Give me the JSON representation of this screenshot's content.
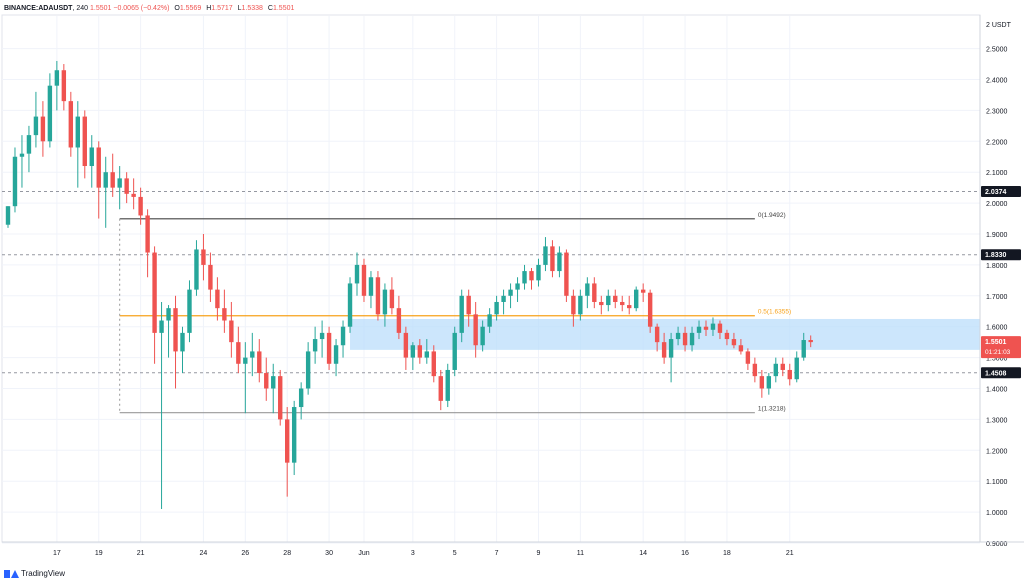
{
  "header": {
    "symbol": "BINANCE:ADAUSDT",
    "interval": "240",
    "last": "1.5501",
    "change": "−0.0065 (−0.42%)",
    "open_label": "O",
    "open": "1.5569",
    "high_label": "H",
    "high": "1.5717",
    "low_label": "L",
    "low": "1.5338",
    "close_label": "C",
    "close": "1.5501"
  },
  "footer": {
    "brand": "TradingView"
  },
  "colors": {
    "up": "#26a69a",
    "down": "#ef5350",
    "fib_half": "#f7a21b",
    "fib_line": "#444444",
    "zone": "#bbdefb",
    "grid": "#f0f3fa",
    "axis_text": "#131722",
    "label_bg": "#131722",
    "price_label_bg": "#ef5350"
  },
  "chart_data": {
    "type": "candlestick",
    "ylim": [
      0.9,
      2.6
    ],
    "y_unit": "USDT",
    "y_ticks": [
      "2.5000",
      "2.4000",
      "2.3000",
      "2.2000",
      "2.1000",
      "2.0000",
      "1.9000",
      "1.8000",
      "1.7000",
      "1.6000",
      "1.5000",
      "1.4000",
      "1.3000",
      "1.2000",
      "1.1000",
      "1.0000",
      "0.9000"
    ],
    "x_ticks": [
      {
        "label": "17",
        "t": 14
      },
      {
        "label": "19",
        "t": 26
      },
      {
        "label": "21",
        "t": 38
      },
      {
        "label": "24",
        "t": 56
      },
      {
        "label": "26",
        "t": 68
      },
      {
        "label": "28",
        "t": 80
      },
      {
        "label": "30",
        "t": 92
      },
      {
        "label": "Jun",
        "t": 102
      },
      {
        "label": "3",
        "t": 116
      },
      {
        "label": "5",
        "t": 128
      },
      {
        "label": "7",
        "t": 140
      },
      {
        "label": "9",
        "t": 152
      },
      {
        "label": "11",
        "t": 164
      },
      {
        "label": "14",
        "t": 182
      },
      {
        "label": "16",
        "t": 194
      },
      {
        "label": "18",
        "t": 206
      },
      {
        "label": "21",
        "t": 224
      }
    ],
    "price_labels": [
      {
        "text": "2.0374",
        "value": 2.0374,
        "style": "dark",
        "dashed_line": true
      },
      {
        "text": "1.8330",
        "value": 1.833,
        "style": "dark",
        "dashed_line": true
      },
      {
        "text": "1.5501",
        "sub": "01:21:03",
        "value": 1.5501,
        "style": "red",
        "dashed_line": false
      },
      {
        "text": "1.4508",
        "value": 1.4508,
        "style": "dark",
        "dashed_line": true
      }
    ],
    "fib_levels": [
      {
        "label": "0(1.9492)",
        "value": 1.9492,
        "color": "#444444",
        "t_start": 32,
        "t_end": 214
      },
      {
        "label": "0.5(1.6355)",
        "value": 1.6355,
        "color": "#f7a21b",
        "t_start": 32,
        "t_end": 214
      },
      {
        "label": "1(1.3218)",
        "value": 1.3218,
        "color": "#999999",
        "t_start": 32,
        "t_end": 214
      }
    ],
    "zone": {
      "t_start": 98,
      "t_end": 240,
      "from": 1.525,
      "to": 1.625
    },
    "candles": [
      [
        1.93,
        1.99,
        1.92,
        1.99
      ],
      [
        1.99,
        2.18,
        1.97,
        2.15
      ],
      [
        2.15,
        2.22,
        2.05,
        2.16
      ],
      [
        2.16,
        2.25,
        2.1,
        2.22
      ],
      [
        2.22,
        2.36,
        2.18,
        2.28
      ],
      [
        2.28,
        2.33,
        2.15,
        2.2
      ],
      [
        2.2,
        2.42,
        2.18,
        2.38
      ],
      [
        2.38,
        2.46,
        2.3,
        2.43
      ],
      [
        2.43,
        2.45,
        2.3,
        2.33
      ],
      [
        2.33,
        2.36,
        2.15,
        2.18
      ],
      [
        2.18,
        2.33,
        2.05,
        2.28
      ],
      [
        2.28,
        2.3,
        2.08,
        2.12
      ],
      [
        2.12,
        2.22,
        2.05,
        2.18
      ],
      [
        2.18,
        2.2,
        1.95,
        2.05
      ],
      [
        2.05,
        2.15,
        1.92,
        2.1
      ],
      [
        2.1,
        2.16,
        2.02,
        2.05
      ],
      [
        2.05,
        2.12,
        1.98,
        2.08
      ],
      [
        2.08,
        2.1,
        2.0,
        2.03
      ],
      [
        2.03,
        2.08,
        1.98,
        2.02
      ],
      [
        2.02,
        2.05,
        1.93,
        1.96
      ],
      [
        1.96,
        1.98,
        1.76,
        1.84
      ],
      [
        1.84,
        1.86,
        1.48,
        1.58
      ],
      [
        1.58,
        1.68,
        1.01,
        1.62
      ],
      [
        1.62,
        1.67,
        1.5,
        1.66
      ],
      [
        1.66,
        1.7,
        1.4,
        1.52
      ],
      [
        1.52,
        1.6,
        1.45,
        1.58
      ],
      [
        1.58,
        1.75,
        1.55,
        1.72
      ],
      [
        1.72,
        1.88,
        1.7,
        1.85
      ],
      [
        1.85,
        1.9,
        1.75,
        1.8
      ],
      [
        1.8,
        1.84,
        1.68,
        1.72
      ],
      [
        1.72,
        1.76,
        1.62,
        1.66
      ],
      [
        1.66,
        1.72,
        1.58,
        1.62
      ],
      [
        1.62,
        1.68,
        1.5,
        1.55
      ],
      [
        1.55,
        1.6,
        1.45,
        1.48
      ],
      [
        1.48,
        1.55,
        1.32,
        1.5
      ],
      [
        1.5,
        1.58,
        1.44,
        1.52
      ],
      [
        1.52,
        1.56,
        1.42,
        1.45
      ],
      [
        1.45,
        1.5,
        1.36,
        1.4
      ],
      [
        1.4,
        1.48,
        1.32,
        1.44
      ],
      [
        1.44,
        1.46,
        1.28,
        1.3
      ],
      [
        1.3,
        1.34,
        1.05,
        1.16
      ],
      [
        1.16,
        1.36,
        1.12,
        1.34
      ],
      [
        1.34,
        1.42,
        1.3,
        1.4
      ],
      [
        1.4,
        1.55,
        1.38,
        1.52
      ],
      [
        1.52,
        1.6,
        1.48,
        1.56
      ],
      [
        1.56,
        1.62,
        1.5,
        1.58
      ],
      [
        1.58,
        1.6,
        1.46,
        1.48
      ],
      [
        1.48,
        1.56,
        1.44,
        1.54
      ],
      [
        1.54,
        1.62,
        1.5,
        1.6
      ],
      [
        1.6,
        1.76,
        1.58,
        1.74
      ],
      [
        1.74,
        1.84,
        1.7,
        1.8
      ],
      [
        1.8,
        1.82,
        1.68,
        1.7
      ],
      [
        1.7,
        1.78,
        1.66,
        1.76
      ],
      [
        1.76,
        1.78,
        1.62,
        1.64
      ],
      [
        1.64,
        1.74,
        1.6,
        1.72
      ],
      [
        1.72,
        1.76,
        1.64,
        1.66
      ],
      [
        1.66,
        1.7,
        1.56,
        1.58
      ],
      [
        1.58,
        1.6,
        1.46,
        1.5
      ],
      [
        1.5,
        1.55,
        1.46,
        1.54
      ],
      [
        1.54,
        1.56,
        1.48,
        1.5
      ],
      [
        1.5,
        1.56,
        1.48,
        1.52
      ],
      [
        1.52,
        1.54,
        1.42,
        1.44
      ],
      [
        1.44,
        1.46,
        1.33,
        1.36
      ],
      [
        1.36,
        1.48,
        1.34,
        1.46
      ],
      [
        1.46,
        1.6,
        1.44,
        1.58
      ],
      [
        1.58,
        1.72,
        1.55,
        1.7
      ],
      [
        1.7,
        1.72,
        1.6,
        1.64
      ],
      [
        1.64,
        1.68,
        1.5,
        1.54
      ],
      [
        1.54,
        1.62,
        1.52,
        1.6
      ],
      [
        1.6,
        1.66,
        1.58,
        1.64
      ],
      [
        1.64,
        1.7,
        1.62,
        1.68
      ],
      [
        1.68,
        1.72,
        1.64,
        1.7
      ],
      [
        1.7,
        1.74,
        1.66,
        1.72
      ],
      [
        1.72,
        1.76,
        1.68,
        1.74
      ],
      [
        1.74,
        1.8,
        1.72,
        1.78
      ],
      [
        1.78,
        1.79,
        1.72,
        1.75
      ],
      [
        1.75,
        1.82,
        1.73,
        1.8
      ],
      [
        1.8,
        1.89,
        1.78,
        1.86
      ],
      [
        1.86,
        1.88,
        1.76,
        1.78
      ],
      [
        1.78,
        1.86,
        1.76,
        1.84
      ],
      [
        1.84,
        1.85,
        1.68,
        1.7
      ],
      [
        1.7,
        1.72,
        1.6,
        1.64
      ],
      [
        1.64,
        1.72,
        1.62,
        1.7
      ],
      [
        1.7,
        1.76,
        1.66,
        1.74
      ],
      [
        1.74,
        1.76,
        1.66,
        1.68
      ],
      [
        1.68,
        1.7,
        1.64,
        1.67
      ],
      [
        1.67,
        1.72,
        1.65,
        1.7
      ],
      [
        1.7,
        1.72,
        1.66,
        1.68
      ],
      [
        1.68,
        1.7,
        1.65,
        1.67
      ],
      [
        1.67,
        1.7,
        1.64,
        1.66
      ],
      [
        1.66,
        1.73,
        1.65,
        1.72
      ],
      [
        1.72,
        1.74,
        1.68,
        1.71
      ],
      [
        1.71,
        1.72,
        1.58,
        1.6
      ],
      [
        1.6,
        1.61,
        1.52,
        1.55
      ],
      [
        1.55,
        1.58,
        1.48,
        1.5
      ],
      [
        1.5,
        1.58,
        1.42,
        1.56
      ],
      [
        1.56,
        1.6,
        1.54,
        1.58
      ],
      [
        1.58,
        1.6,
        1.52,
        1.54
      ],
      [
        1.54,
        1.6,
        1.52,
        1.58
      ],
      [
        1.58,
        1.62,
        1.56,
        1.6
      ],
      [
        1.6,
        1.62,
        1.57,
        1.59
      ],
      [
        1.59,
        1.63,
        1.57,
        1.61
      ],
      [
        1.61,
        1.62,
        1.56,
        1.58
      ],
      [
        1.58,
        1.59,
        1.54,
        1.56
      ],
      [
        1.56,
        1.58,
        1.53,
        1.54
      ],
      [
        1.54,
        1.56,
        1.51,
        1.52
      ],
      [
        1.52,
        1.53,
        1.46,
        1.48
      ],
      [
        1.48,
        1.5,
        1.42,
        1.44
      ],
      [
        1.44,
        1.46,
        1.37,
        1.4
      ],
      [
        1.4,
        1.45,
        1.38,
        1.44
      ],
      [
        1.44,
        1.5,
        1.42,
        1.48
      ],
      [
        1.48,
        1.5,
        1.44,
        1.46
      ],
      [
        1.46,
        1.48,
        1.41,
        1.43
      ],
      [
        1.43,
        1.52,
        1.42,
        1.5
      ],
      [
        1.5,
        1.58,
        1.49,
        1.5569
      ],
      [
        1.5569,
        1.5717,
        1.5338,
        1.5501
      ]
    ]
  }
}
